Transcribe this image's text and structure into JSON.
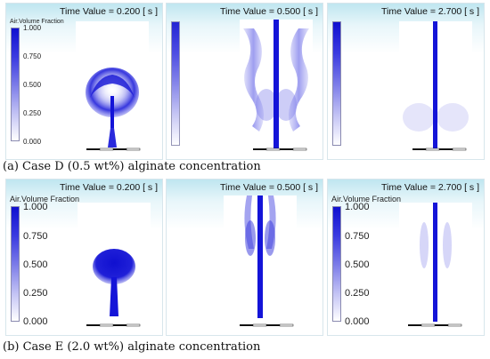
{
  "legend": {
    "title": "Air.Volume Fraction",
    "ticks": [
      "1.000",
      "0.750",
      "0.500",
      "0.250",
      "0.000"
    ]
  },
  "row_a": {
    "caption": "(a) Case D (0.5 wt%) alginate concentration",
    "panels": [
      {
        "time": "Time Value = 0.200 [ s ]"
      },
      {
        "time": "Time Value = 0.500 [ s ]"
      },
      {
        "time": "Time Value = 2.700 [ s ]"
      }
    ]
  },
  "row_b": {
    "caption": "(b) Case E (2.0 wt%) alginate concentration",
    "panels": [
      {
        "time": "Time Value = 0.200 [ s ]"
      },
      {
        "time": "Time Value = 0.500 [ s ]"
      },
      {
        "time": "Time Value = 2.700 [ s ]"
      }
    ]
  },
  "colors": {
    "air_core": "#1414d8",
    "colorbar_top": "#1010d0",
    "background_top": "#bfe6f0"
  }
}
